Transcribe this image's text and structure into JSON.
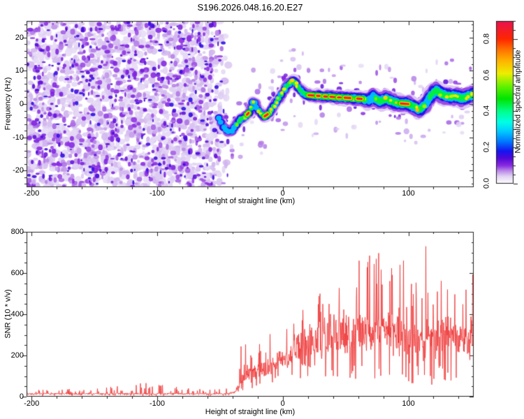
{
  "title": "S196.2026.048.16.20.E27",
  "chart_data": [
    {
      "type": "heatmap",
      "title": "S196.2026.048.16.20.E27",
      "xlabel": "Height of straight line (km)",
      "ylabel": "Frequency (Hz)",
      "xlim": [
        -204,
        152
      ],
      "ylim": [
        -25,
        25
      ],
      "xticks": [
        {
          "v": -200,
          "label": "-200"
        },
        {
          "v": -100,
          "label": "-100"
        },
        {
          "v": 0,
          "label": "0"
        },
        {
          "v": 100,
          "label": "100"
        }
      ],
      "xminor": 20,
      "yticks": [
        {
          "v": 20,
          "label": "20"
        },
        {
          "v": 10,
          "label": "10"
        },
        {
          "v": 0,
          "label": "0"
        },
        {
          "v": -10,
          "label": "-10"
        },
        {
          "v": -20,
          "label": "-20"
        }
      ],
      "yminor": 2,
      "noise_region": {
        "x_full_until": -58,
        "x_fade_to": -42,
        "f_range": [
          -25,
          25
        ],
        "description": "dense random purple speckle noise filling all frequencies left of ~-45 km"
      },
      "trace_description": "narrow high-amplitude spectral ridge from -51 km to right edge",
      "trace": [
        [
          -51,
          -4.3,
          0.55,
          1.6
        ],
        [
          -49,
          -5.6,
          0.5,
          1.6
        ],
        [
          -47,
          -6.9,
          0.5,
          1.7
        ],
        [
          -45,
          -7.9,
          0.52,
          1.7
        ],
        [
          -43,
          -8.3,
          0.55,
          1.7
        ],
        [
          -41,
          -8.0,
          0.55,
          1.8
        ],
        [
          -39,
          -7.2,
          0.5,
          1.8
        ],
        [
          -37,
          -6.2,
          0.58,
          1.8
        ],
        [
          -35,
          -5.2,
          0.62,
          1.8
        ],
        [
          -33,
          -4.4,
          0.68,
          1.8
        ],
        [
          -31,
          -4.0,
          0.6,
          1.8
        ],
        [
          -29,
          -3.4,
          0.62,
          1.8
        ],
        [
          -27,
          -2.6,
          0.58,
          1.8
        ],
        [
          -25,
          -1.2,
          0.6,
          1.8
        ],
        [
          -23.5,
          0.6,
          0.62,
          1.8
        ],
        [
          -22,
          0.2,
          0.55,
          1.8
        ],
        [
          -20.5,
          -1.0,
          0.52,
          1.8
        ],
        [
          -19,
          -2.0,
          0.58,
          1.8
        ],
        [
          -17,
          -3.0,
          0.62,
          1.9
        ],
        [
          -15,
          -3.8,
          0.65,
          1.9
        ],
        [
          -13,
          -3.4,
          0.72,
          1.9
        ],
        [
          -11,
          -2.7,
          0.6,
          1.9
        ],
        [
          -9,
          -1.7,
          0.62,
          1.9
        ],
        [
          -7,
          -0.7,
          0.62,
          1.9
        ],
        [
          -5,
          0.5,
          0.65,
          1.9
        ],
        [
          -3,
          1.7,
          0.6,
          1.9
        ],
        [
          -1,
          3.0,
          0.62,
          1.9
        ],
        [
          1,
          4.3,
          0.6,
          1.9
        ],
        [
          3,
          5.3,
          0.62,
          1.9
        ],
        [
          5,
          6.1,
          0.6,
          2
        ],
        [
          7,
          6.7,
          0.68,
          2
        ],
        [
          8.5,
          6.9,
          0.7,
          2
        ],
        [
          10,
          6.3,
          0.62,
          2
        ],
        [
          12,
          5.1,
          0.65,
          2
        ],
        [
          14,
          4.2,
          0.7,
          2
        ],
        [
          16,
          3.5,
          0.62,
          2.1
        ],
        [
          18,
          3.0,
          0.68,
          2.1
        ],
        [
          20,
          2.7,
          0.78,
          2.1
        ],
        [
          22,
          2.6,
          0.85,
          2.1
        ],
        [
          24,
          2.6,
          0.85,
          2.1
        ],
        [
          26,
          2.5,
          0.7,
          2.2
        ],
        [
          28,
          2.5,
          0.85,
          2.2
        ],
        [
          30,
          2.4,
          0.72,
          2.2
        ],
        [
          32,
          2.3,
          0.78,
          2.2
        ],
        [
          34,
          2.3,
          0.85,
          2.2
        ],
        [
          36,
          2.2,
          0.72,
          2.3
        ],
        [
          38,
          2.2,
          0.85,
          2.3
        ],
        [
          40,
          2.1,
          0.85,
          2.3
        ],
        [
          42,
          2.1,
          0.85,
          2.3
        ],
        [
          44,
          2.0,
          0.85,
          2.3
        ],
        [
          46,
          2.0,
          0.75,
          2.4
        ],
        [
          48,
          1.9,
          0.7,
          2.4
        ],
        [
          50,
          1.9,
          0.85,
          2.4
        ],
        [
          52,
          1.8,
          0.8,
          2.4
        ],
        [
          54,
          1.8,
          0.72,
          2.4
        ],
        [
          56,
          1.7,
          0.66,
          2.5
        ],
        [
          58,
          1.7,
          0.72,
          2.5
        ],
        [
          60,
          1.6,
          0.85,
          2.5
        ],
        [
          62,
          1.6,
          0.8,
          2.5
        ],
        [
          64,
          1.5,
          0.66,
          2.6
        ],
        [
          66,
          1.3,
          0.56,
          2.7
        ],
        [
          68,
          1.1,
          0.52,
          2.9
        ],
        [
          70,
          1.6,
          0.55,
          3.0
        ],
        [
          72,
          2.1,
          0.52,
          3.1
        ],
        [
          74,
          1.6,
          0.56,
          3.1
        ],
        [
          76,
          1.1,
          0.6,
          3.1
        ],
        [
          78,
          0.9,
          0.62,
          3.1
        ],
        [
          80,
          1.3,
          0.6,
          3.1
        ],
        [
          82,
          1.6,
          0.62,
          3.0
        ],
        [
          84,
          1.3,
          0.6,
          3.0
        ],
        [
          86,
          0.9,
          0.62,
          3.0
        ],
        [
          88,
          0.6,
          0.6,
          3.0
        ],
        [
          90,
          0.4,
          0.66,
          3.0
        ],
        [
          92,
          0.3,
          0.72,
          3.0
        ],
        [
          94,
          0.2,
          0.85,
          2.9
        ],
        [
          96,
          0.1,
          0.85,
          2.9
        ],
        [
          98,
          0.1,
          0.85,
          2.9
        ],
        [
          100,
          0.0,
          0.8,
          2.9
        ],
        [
          102,
          -0.3,
          0.62,
          3.0
        ],
        [
          104,
          -0.7,
          0.62,
          3.0
        ],
        [
          106,
          -1.1,
          0.66,
          3.0
        ],
        [
          108,
          -1.6,
          0.7,
          3.0
        ],
        [
          110,
          -1.3,
          0.62,
          3.1
        ],
        [
          112,
          -0.6,
          0.56,
          3.2
        ],
        [
          114,
          0.3,
          0.55,
          3.3
        ],
        [
          116,
          1.3,
          0.52,
          3.4
        ],
        [
          118,
          2.3,
          0.56,
          3.4
        ],
        [
          120,
          3.3,
          0.56,
          3.4
        ],
        [
          122,
          3.9,
          0.6,
          3.4
        ],
        [
          124,
          3.6,
          0.62,
          3.3
        ],
        [
          126,
          3.1,
          0.6,
          3.3
        ],
        [
          128,
          2.7,
          0.62,
          3.3
        ],
        [
          130,
          2.5,
          0.65,
          3.2
        ],
        [
          132,
          2.3,
          0.68,
          3.2
        ],
        [
          134,
          2.2,
          0.62,
          3.2
        ],
        [
          136,
          2.3,
          0.64,
          3.2
        ],
        [
          138,
          2.2,
          0.68,
          3.2
        ],
        [
          140,
          2.0,
          0.6,
          3.2
        ],
        [
          142,
          1.8,
          0.62,
          3.2
        ],
        [
          144,
          1.9,
          0.64,
          3.2
        ],
        [
          146,
          2.1,
          0.62,
          3.2
        ],
        [
          148,
          2.4,
          0.64,
          3.2
        ],
        [
          150,
          2.7,
          0.62,
          3.2
        ],
        [
          152,
          2.9,
          0.6,
          3.2
        ]
      ],
      "red_segments": [
        [
          -28.5,
          -27.2
        ],
        [
          -14.5,
          -12
        ],
        [
          20.5,
          25.3
        ],
        [
          27.3,
          29.3
        ],
        [
          33,
          35
        ],
        [
          38,
          43.2
        ],
        [
          44,
          46
        ],
        [
          49.2,
          53.8
        ],
        [
          59.3,
          62.8
        ],
        [
          94,
          100
        ]
      ],
      "colorbar": {
        "label": "Normalized spectral amplitude",
        "range": [
          0,
          0.9
        ],
        "ticks": [
          {
            "v": 0.0,
            "label": "0.0"
          },
          {
            "v": 0.2,
            "label": "0.2"
          },
          {
            "v": 0.4,
            "label": "0.4"
          },
          {
            "v": 0.6,
            "label": "0.6"
          },
          {
            "v": 0.8,
            "label": "0.8"
          }
        ],
        "minor": 0.05,
        "stops": [
          [
            0.0,
            "#ffffff"
          ],
          [
            0.04,
            "#e2d4f4"
          ],
          [
            0.07,
            "#bb8ce8"
          ],
          [
            0.1,
            "#8a2be2"
          ],
          [
            0.14,
            "#5208d8"
          ],
          [
            0.18,
            "#1515ef"
          ],
          [
            0.23,
            "#0073ff"
          ],
          [
            0.29,
            "#00ccff"
          ],
          [
            0.34,
            "#00ffe6"
          ],
          [
            0.4,
            "#00ff8c"
          ],
          [
            0.47,
            "#00e400"
          ],
          [
            0.54,
            "#66f200"
          ],
          [
            0.61,
            "#eeee00"
          ],
          [
            0.68,
            "#ffb300"
          ],
          [
            0.74,
            "#ff7300"
          ],
          [
            0.8,
            "#ff2600"
          ],
          [
            0.9,
            "#e81250"
          ]
        ]
      }
    },
    {
      "type": "line",
      "xlabel": "Height of straight line (km)",
      "ylabel": "SNR (10 * v/v)",
      "color": "#ee3636",
      "xlim": [
        -204,
        152
      ],
      "ylim": [
        0,
        800
      ],
      "xticks": [
        {
          "v": -200,
          "label": "-200"
        },
        {
          "v": -100,
          "label": "-100"
        },
        {
          "v": 0,
          "label": "0"
        },
        {
          "v": 100,
          "label": "100"
        }
      ],
      "xminor": 20,
      "yticks": [
        {
          "v": 0,
          "label": "0"
        },
        {
          "v": 200,
          "label": "200"
        },
        {
          "v": 400,
          "label": "400"
        },
        {
          "v": 600,
          "label": "600"
        },
        {
          "v": 800,
          "label": "800"
        }
      ],
      "yminor": 50,
      "envelope_description": "x, mean level, spike max, dip min (noisy signal; flat ~13 until -38 km, then rises, very spiky 200-800 beyond 0 km)",
      "envelope": [
        [
          -204,
          13,
          34,
          4
        ],
        [
          -150,
          13,
          40,
          4
        ],
        [
          -108,
          14,
          68,
          4
        ],
        [
          -70,
          13,
          38,
          4
        ],
        [
          -45,
          14,
          40,
          5
        ],
        [
          -38,
          22,
          60,
          8
        ],
        [
          -36,
          45,
          230,
          15
        ],
        [
          -33,
          80,
          255,
          25
        ],
        [
          -28,
          100,
          270,
          35
        ],
        [
          -24,
          115,
          310,
          40
        ],
        [
          -20,
          125,
          345,
          45
        ],
        [
          -16,
          130,
          400,
          50
        ],
        [
          -12,
          140,
          380,
          55
        ],
        [
          -8,
          145,
          340,
          60
        ],
        [
          -4,
          155,
          320,
          65
        ],
        [
          0,
          170,
          310,
          70
        ],
        [
          4,
          185,
          350,
          75
        ],
        [
          8,
          205,
          400,
          80
        ],
        [
          12,
          230,
          430,
          85
        ],
        [
          16,
          250,
          500,
          90
        ],
        [
          20,
          260,
          565,
          90
        ],
        [
          24,
          270,
          490,
          95
        ],
        [
          28,
          280,
          525,
          95
        ],
        [
          32,
          280,
          465,
          95
        ],
        [
          36,
          285,
          505,
          90
        ],
        [
          40,
          290,
          530,
          90
        ],
        [
          44,
          300,
          570,
          85
        ],
        [
          48,
          305,
          625,
          75
        ],
        [
          52,
          310,
          655,
          70
        ],
        [
          56,
          300,
          690,
          65
        ],
        [
          60,
          310,
          655,
          65
        ],
        [
          64,
          300,
          785,
          55
        ],
        [
          68,
          290,
          705,
          60
        ],
        [
          72,
          295,
          765,
          55
        ],
        [
          76,
          305,
          745,
          55
        ],
        [
          80,
          310,
          800,
          55
        ],
        [
          84,
          320,
          800,
          50
        ],
        [
          88,
          310,
          795,
          50
        ],
        [
          92,
          300,
          730,
          55
        ],
        [
          96,
          280,
          690,
          60
        ],
        [
          100,
          265,
          610,
          65
        ],
        [
          104,
          270,
          645,
          60
        ],
        [
          108,
          280,
          705,
          60
        ],
        [
          112,
          290,
          765,
          55
        ],
        [
          116,
          295,
          730,
          55
        ],
        [
          120,
          300,
          790,
          55
        ],
        [
          124,
          290,
          660,
          65
        ],
        [
          128,
          295,
          610,
          75
        ],
        [
          132,
          300,
          685,
          70
        ],
        [
          136,
          290,
          640,
          75
        ],
        [
          140,
          285,
          625,
          75
        ],
        [
          144,
          265,
          705,
          80
        ],
        [
          148,
          275,
          745,
          90
        ],
        [
          151,
          320,
          640,
          120
        ],
        [
          152,
          480,
          520,
          300
        ]
      ]
    }
  ]
}
